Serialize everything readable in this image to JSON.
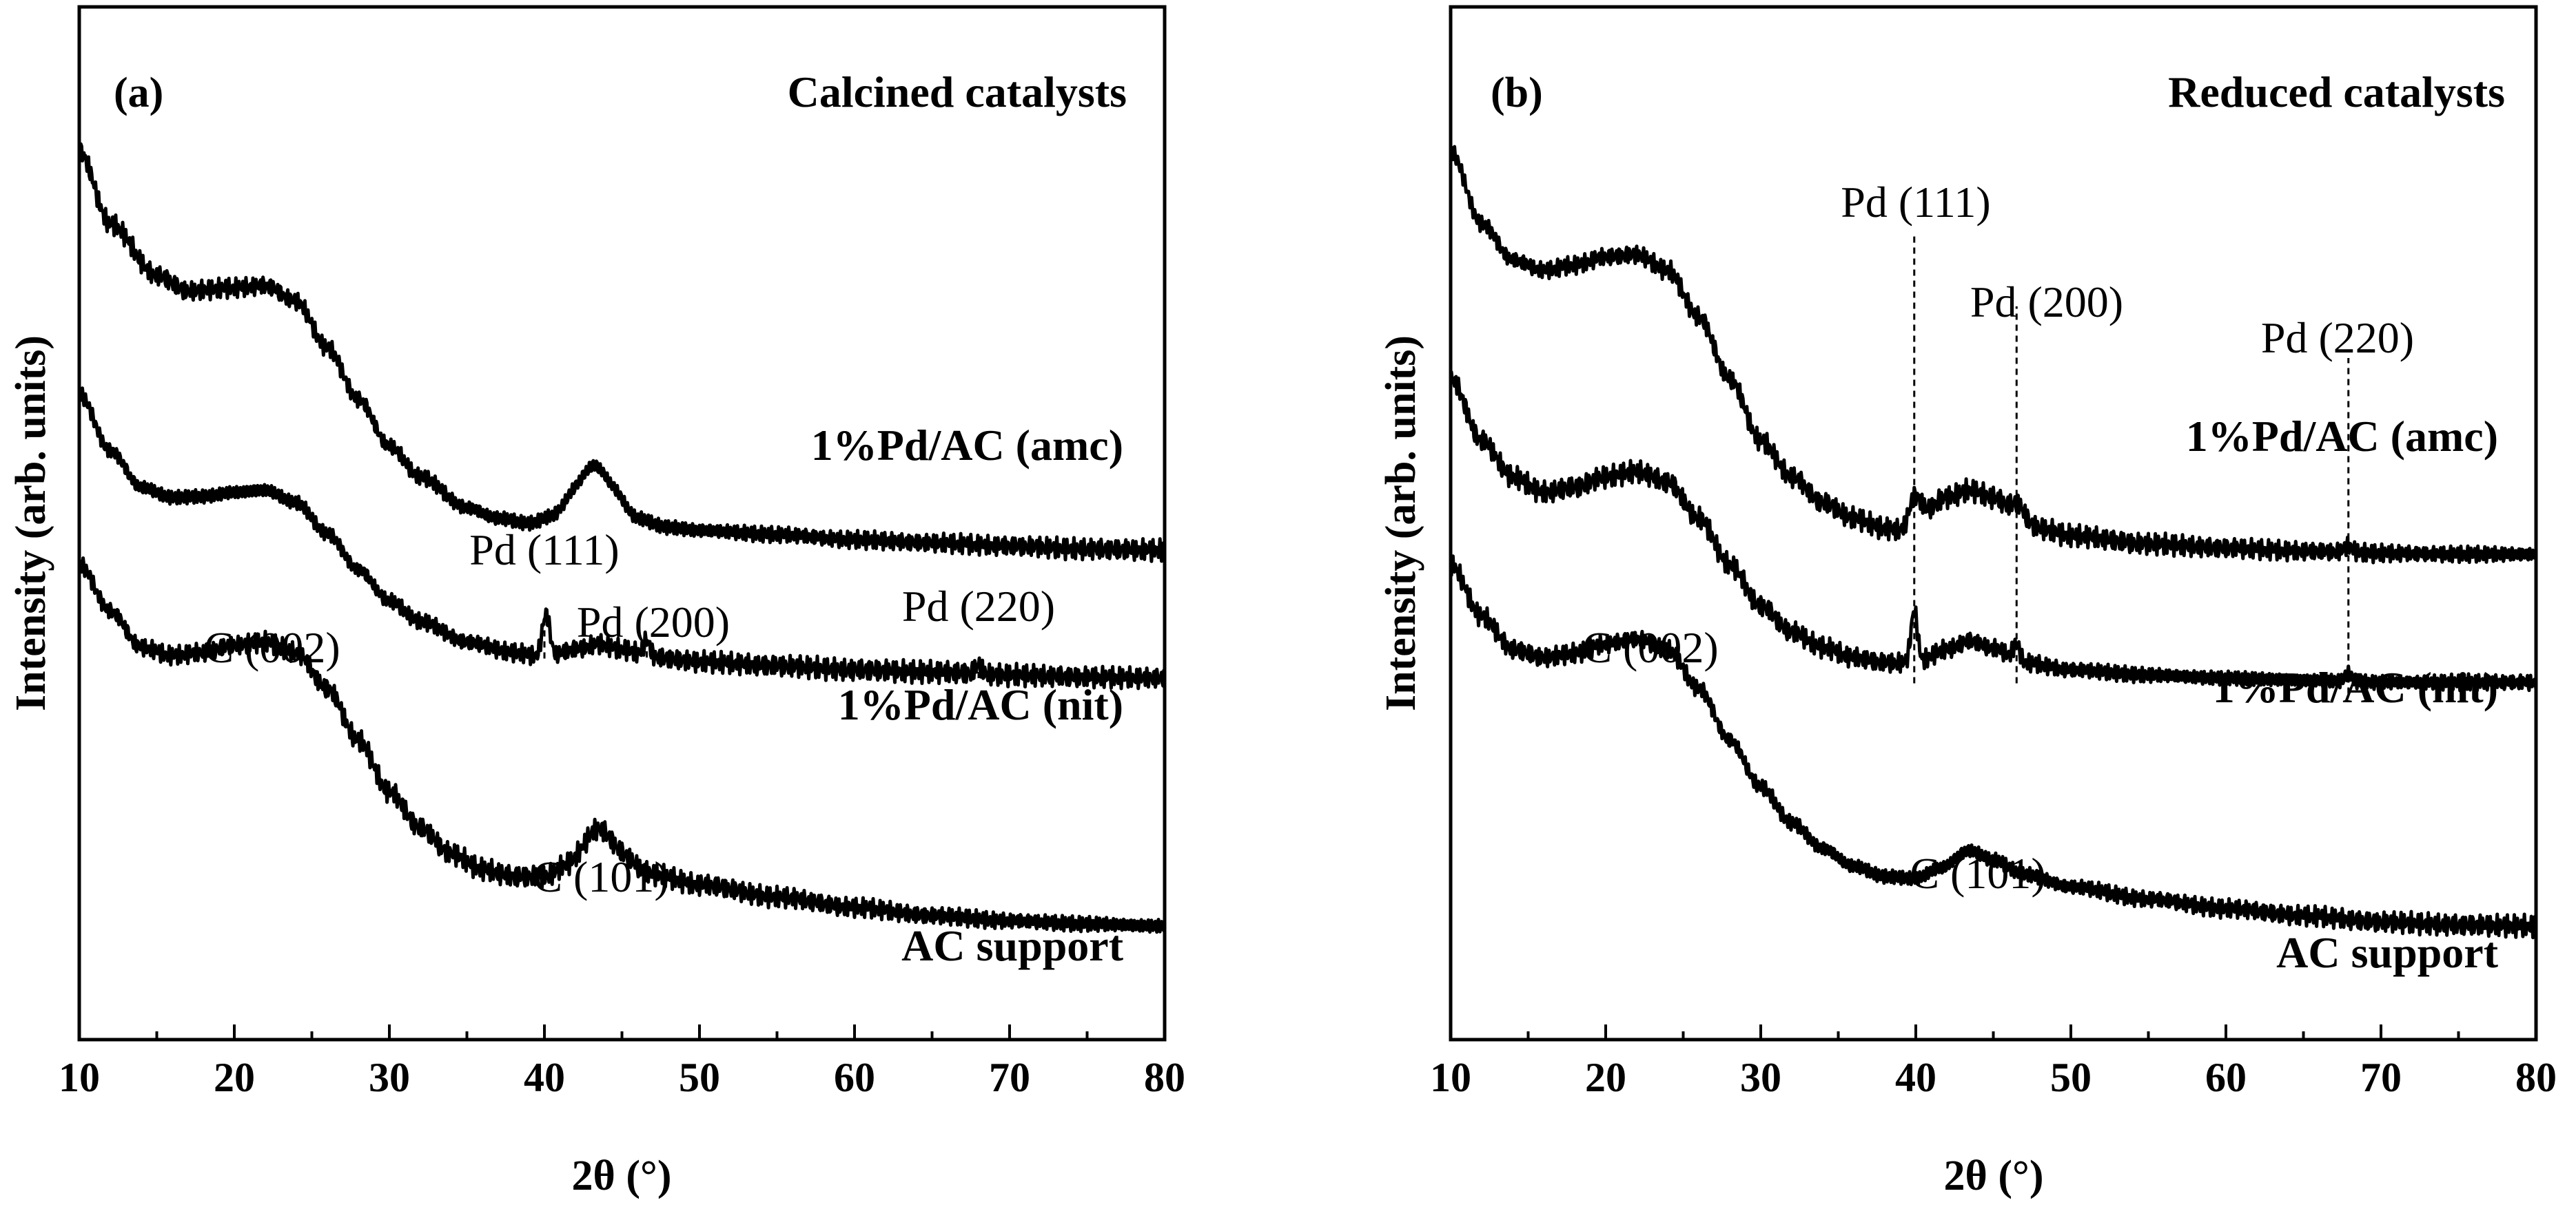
{
  "chart_data": [
    {
      "type": "line",
      "panel_label": "(a)",
      "title": "Calcined catalysts",
      "xlabel": "2θ (°)",
      "ylabel": "Intensity (arb. units)",
      "xlim": [
        10,
        80
      ],
      "x_ticks": [
        10,
        20,
        30,
        40,
        50,
        60,
        70,
        80
      ],
      "x_minor_step": 5,
      "y_ticks_shown": false,
      "series": [
        {
          "name": "1%Pd/AC (amc)",
          "points": [
            [
              10,
              86
            ],
            [
              12,
              79
            ],
            [
              15,
              74
            ],
            [
              17,
              72.5
            ],
            [
              20,
              72.8
            ],
            [
              22,
              73
            ],
            [
              24,
              71.5
            ],
            [
              26,
              67
            ],
            [
              28,
              62
            ],
            [
              30,
              57.5
            ],
            [
              32,
              54.5
            ],
            [
              35,
              51.5
            ],
            [
              37,
              50.5
            ],
            [
              39,
              50
            ],
            [
              40.5,
              50.6
            ],
            [
              42,
              52
            ],
            [
              43.2,
              52.8
            ],
            [
              44.5,
              52
            ],
            [
              46,
              50.4
            ],
            [
              48,
              49.6
            ],
            [
              50,
              49.3
            ],
            [
              55,
              48.9
            ],
            [
              60,
              48.4
            ],
            [
              65,
              48.1
            ],
            [
              70,
              47.8
            ],
            [
              75,
              47.5
            ],
            [
              80,
              47.4
            ]
          ],
          "peaks": [
            {
              "x": 43.2,
              "height": 2.8,
              "width": 1.6
            }
          ]
        },
        {
          "name": "1%Pd/AC (nit)",
          "points": [
            [
              10,
              62.5
            ],
            [
              12,
              57
            ],
            [
              14,
              53.5
            ],
            [
              16,
              52.5
            ],
            [
              18,
              52.6
            ],
            [
              20,
              53
            ],
            [
              22,
              53.2
            ],
            [
              24,
              52
            ],
            [
              26,
              49
            ],
            [
              28,
              45.5
            ],
            [
              30,
              42.5
            ],
            [
              32,
              40.5
            ],
            [
              35,
              38.5
            ],
            [
              38,
              37.5
            ],
            [
              40,
              37
            ],
            [
              42,
              37.8
            ],
            [
              43.5,
              38.3
            ],
            [
              45,
              37.8
            ],
            [
              47,
              37
            ],
            [
              50,
              36.6
            ],
            [
              55,
              36.2
            ],
            [
              60,
              35.8
            ],
            [
              65,
              35.6
            ],
            [
              70,
              35.3
            ],
            [
              75,
              35.1
            ],
            [
              80,
              35
            ]
          ],
          "peaks": [
            {
              "x": 40.1,
              "height": 4.2,
              "width": 0.35
            },
            {
              "x": 46.6,
              "height": 1.6,
              "width": 0.3
            },
            {
              "x": 68.0,
              "height": 0.9,
              "width": 0.3
            }
          ]
        },
        {
          "name": "AC support",
          "points": [
            [
              10,
              46
            ],
            [
              12,
              41.5
            ],
            [
              14,
              38
            ],
            [
              16,
              37.2
            ],
            [
              18,
              37.5
            ],
            [
              20,
              38.2
            ],
            [
              22,
              38.5
            ],
            [
              24,
              37.5
            ],
            [
              26,
              34
            ],
            [
              28,
              29
            ],
            [
              30,
              24
            ],
            [
              32,
              20.5
            ],
            [
              34,
              18
            ],
            [
              36,
              16.5
            ],
            [
              38,
              15.8
            ],
            [
              40,
              15.8
            ],
            [
              41.5,
              16.8
            ],
            [
              43.5,
              18.4
            ],
            [
              45,
              17.5
            ],
            [
              47,
              16
            ],
            [
              50,
              15
            ],
            [
              55,
              13.8
            ],
            [
              60,
              12.8
            ],
            [
              65,
              12
            ],
            [
              70,
              11.5
            ],
            [
              75,
              11.2
            ],
            [
              80,
              11
            ]
          ],
          "peaks": [
            {
              "x": 43.5,
              "height": 2.0,
              "width": 1.4
            }
          ]
        }
      ],
      "annotations": [
        {
          "text": "Pd (111)",
          "x": 40,
          "line_from": 36.9,
          "line_to": 41.0
        },
        {
          "text": "Pd (200)",
          "x": 46.6,
          "line_from": 37.0,
          "line_to": 38.4
        },
        {
          "text": "Pd (220)",
          "x": 68,
          "line_from": 35.0,
          "line_to": 37.0
        },
        {
          "text": "C (002)",
          "x": 22.5,
          "y": 39.5
        },
        {
          "text": "C (101)",
          "x": 41.7,
          "y": 19.5
        }
      ]
    },
    {
      "type": "line",
      "panel_label": "(b)",
      "title": "Reduced catalysts",
      "xlabel": "2θ (°)",
      "ylabel": "Intensity (arb. units)",
      "xlim": [
        10,
        80
      ],
      "x_ticks": [
        10,
        20,
        30,
        40,
        50,
        60,
        70,
        80
      ],
      "x_minor_step": 5,
      "y_ticks_shown": false,
      "series": [
        {
          "name": "1%Pd/AC (amc)",
          "points": [
            [
              10,
              86
            ],
            [
              12,
              79
            ],
            [
              14,
              75.5
            ],
            [
              16,
              74.5
            ],
            [
              18,
              75
            ],
            [
              20,
              75.8
            ],
            [
              22,
              76
            ],
            [
              24,
              74.5
            ],
            [
              26,
              70
            ],
            [
              28,
              64
            ],
            [
              30,
              58
            ],
            [
              32,
              54.5
            ],
            [
              34,
              52
            ],
            [
              36,
              50.5
            ],
            [
              38,
              49.5
            ],
            [
              39,
              49.3
            ],
            [
              40.5,
              51.2
            ],
            [
              42,
              52.5
            ],
            [
              43.5,
              53.2
            ],
            [
              45,
              52.5
            ],
            [
              46.5,
              51
            ],
            [
              48,
              49.5
            ],
            [
              50,
              48.8
            ],
            [
              55,
              48
            ],
            [
              60,
              47.6
            ],
            [
              65,
              47.3
            ],
            [
              70,
              47.1
            ],
            [
              75,
              47
            ],
            [
              80,
              47
            ]
          ],
          "peaks": [
            {
              "x": 39.9,
              "height": 2.0,
              "width": 0.5
            },
            {
              "x": 46.5,
              "height": 1.0,
              "width": 0.5
            },
            {
              "x": 67.9,
              "height": 0.6,
              "width": 0.4
            }
          ]
        },
        {
          "name": "1%Pd/AC (nit)",
          "points": [
            [
              10,
              64
            ],
            [
              12,
              58
            ],
            [
              14,
              54.5
            ],
            [
              16,
              53
            ],
            [
              18,
              53.5
            ],
            [
              20,
              54.5
            ],
            [
              22,
              55
            ],
            [
              24,
              54
            ],
            [
              26,
              50.5
            ],
            [
              28,
              46
            ],
            [
              30,
              42
            ],
            [
              32,
              39.5
            ],
            [
              34,
              38
            ],
            [
              36,
              37
            ],
            [
              38,
              36.5
            ],
            [
              40,
              36.5
            ],
            [
              42,
              37.8
            ],
            [
              43.5,
              38.6
            ],
            [
              45,
              37.9
            ],
            [
              47,
              36.5
            ],
            [
              50,
              35.8
            ],
            [
              55,
              35.3
            ],
            [
              60,
              35
            ],
            [
              65,
              34.8
            ],
            [
              70,
              34.6
            ],
            [
              75,
              34.6
            ],
            [
              80,
              34.6
            ]
          ],
          "peaks": [
            {
              "x": 39.9,
              "height": 5.0,
              "width": 0.3
            },
            {
              "x": 46.5,
              "height": 1.6,
              "width": 0.3
            },
            {
              "x": 67.9,
              "height": 0.8,
              "width": 0.3
            }
          ]
        },
        {
          "name": "AC support",
          "points": [
            [
              10,
              46
            ],
            [
              12,
              41
            ],
            [
              14,
              37.8
            ],
            [
              16,
              37
            ],
            [
              18,
              37.4
            ],
            [
              20,
              38.3
            ],
            [
              22,
              38.8
            ],
            [
              24,
              37.8
            ],
            [
              26,
              34
            ],
            [
              28,
              29
            ],
            [
              30,
              24.5
            ],
            [
              32,
              21
            ],
            [
              34,
              18.5
            ],
            [
              36,
              16.8
            ],
            [
              38,
              15.8
            ],
            [
              40,
              15.6
            ],
            [
              41.5,
              16.6
            ],
            [
              43.5,
              18.3
            ],
            [
              45,
              17.4
            ],
            [
              47,
              16
            ],
            [
              50,
              14.8
            ],
            [
              55,
              13.6
            ],
            [
              60,
              12.7
            ],
            [
              65,
              12
            ],
            [
              70,
              11.4
            ],
            [
              75,
              11.1
            ],
            [
              80,
              11
            ]
          ],
          "peaks": []
        }
      ],
      "annotations": [
        {
          "text": "Pd (111)",
          "x": 39.9,
          "line_from": 34.5,
          "line_to": 78.0
        },
        {
          "text": "Pd (200)",
          "x": 46.5,
          "line_from": 34.5,
          "line_to": 71.0
        },
        {
          "text": "Pd (220)",
          "x": 67.9,
          "line_from": 33.5,
          "line_to": 66.0
        },
        {
          "text": "C (002)",
          "x": 22.5,
          "y": 39.5
        },
        {
          "text": "C (101)",
          "x": 41.5,
          "y": 19.5
        }
      ]
    }
  ]
}
